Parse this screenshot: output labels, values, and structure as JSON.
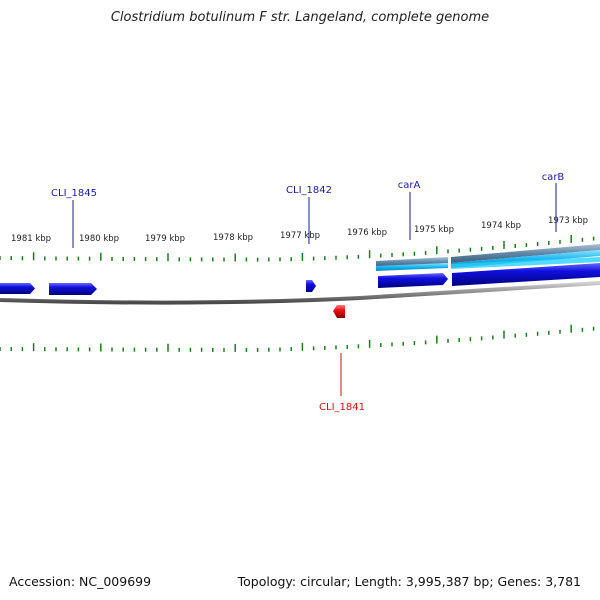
{
  "title": "Clostridium botulinum F str. Langeland, complete genome",
  "footer": {
    "accession": "Accession: NC_009699",
    "topology": "Topology: circular; Length: 3,995,387 bp; Genes: 3,781"
  },
  "colors": {
    "backbone": "#8a8a8a",
    "tick": "#1e7a1e",
    "forward_gene": "#1010e0",
    "reverse_gene": "#ee1111",
    "forward_label": "#1a1aa0",
    "reverse_label": "#cc1111",
    "operon_gray": "#5f86a6",
    "operon_cyan": "#18b6ee"
  },
  "scale_labels": [
    "1981 kbp",
    "1980 kbp",
    "1979 kbp",
    "1978 kbp",
    "1977 kbp",
    "1976 kbp",
    "1975 kbp",
    "1974 kbp",
    "1973 kbp"
  ],
  "gene_labels": [
    {
      "name": "CLI_1845",
      "strand": "forward"
    },
    {
      "name": "CLI_1842",
      "strand": "forward"
    },
    {
      "name": "carA",
      "strand": "forward"
    },
    {
      "name": "carB",
      "strand": "forward"
    },
    {
      "name": "CLI_1841",
      "strand": "reverse"
    }
  ]
}
